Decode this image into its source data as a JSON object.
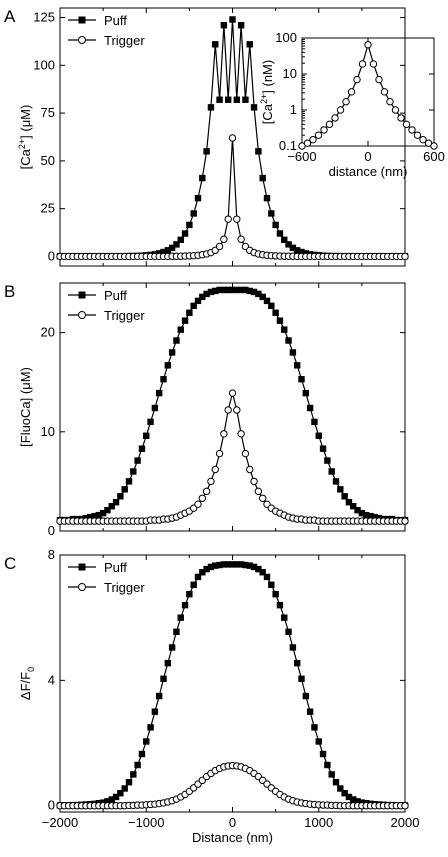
{
  "chart_data": [
    {
      "panel_label": "A",
      "type": "line",
      "x": [
        -2000,
        -1950,
        -1900,
        -1850,
        -1800,
        -1750,
        -1700,
        -1650,
        -1600,
        -1550,
        -1500,
        -1450,
        -1400,
        -1350,
        -1300,
        -1250,
        -1200,
        -1150,
        -1100,
        -1050,
        -1000,
        -950,
        -900,
        -850,
        -800,
        -750,
        -700,
        -650,
        -600,
        -550,
        -500,
        -450,
        -400,
        -350,
        -300,
        -250,
        -200,
        -150,
        -100,
        -50,
        0,
        50,
        100,
        150,
        200,
        250,
        300,
        350,
        400,
        450,
        500,
        550,
        600,
        650,
        700,
        750,
        800,
        850,
        900,
        950,
        1000,
        1050,
        1100,
        1150,
        1200,
        1250,
        1300,
        1350,
        1400,
        1450,
        1500,
        1550,
        1600,
        1650,
        1700,
        1750,
        1800,
        1850,
        1900,
        1950,
        2000
      ],
      "series": [
        {
          "name": "Puff",
          "marker": "filled-square",
          "values": [
            0.1,
            0.1,
            0.1,
            0.1,
            0.1,
            0.1,
            0.1,
            0.1,
            0.1,
            0.1,
            0.1,
            0.1,
            0.1,
            0.1,
            0.1,
            0.1,
            0.2,
            0.2,
            0.3,
            0.4,
            0.6,
            0.8,
            1.1,
            1.6,
            2.3,
            3.2,
            4.5,
            6.3,
            8.7,
            12.0,
            16.5,
            22.5,
            30.5,
            41.0,
            55.0,
            78.0,
            111.0,
            82.0,
            121.0,
            82.0,
            124.0,
            82.0,
            121.0,
            82.0,
            111.0,
            78.0,
            55.0,
            41.0,
            30.5,
            22.5,
            16.5,
            12.0,
            8.7,
            6.3,
            4.5,
            3.2,
            2.3,
            1.6,
            1.1,
            0.8,
            0.6,
            0.4,
            0.3,
            0.2,
            0.2,
            0.1,
            0.1,
            0.1,
            0.1,
            0.1,
            0.1,
            0.1,
            0.1,
            0.1,
            0.1,
            0.1,
            0.1,
            0.1,
            0.1,
            0.1,
            0.1
          ]
        },
        {
          "name": "Trigger",
          "marker": "open-circle",
          "values": [
            0,
            0,
            0,
            0,
            0,
            0,
            0,
            0,
            0,
            0,
            0,
            0,
            0,
            0,
            0,
            0,
            0,
            0,
            0,
            0,
            0,
            0,
            0,
            0,
            0,
            0,
            0.1,
            0.1,
            0.1,
            0.2,
            0.3,
            0.4,
            0.6,
            0.9,
            1.3,
            2.0,
            3.2,
            5.2,
            9.0,
            19.5,
            62.0,
            19.5,
            9.0,
            5.2,
            3.2,
            2.0,
            1.3,
            0.9,
            0.6,
            0.4,
            0.3,
            0.2,
            0.1,
            0.1,
            0.1,
            0,
            0,
            0,
            0,
            0,
            0,
            0,
            0,
            0,
            0,
            0,
            0,
            0,
            0,
            0,
            0,
            0,
            0,
            0,
            0,
            0,
            0,
            0,
            0,
            0,
            0
          ]
        }
      ],
      "xlim": [
        -2000,
        2000
      ],
      "ylim": [
        -5,
        130
      ],
      "yticks": [
        0,
        25,
        50,
        75,
        100,
        125
      ],
      "xticks": [
        -2000,
        -1000,
        0,
        1000,
        2000
      ],
      "show_x_tick_labels": false,
      "ylabel": {
        "prefix": "[Ca",
        "sup": "2+",
        "suffix": "] (μM)"
      },
      "legend_position": "top-left",
      "grid": false
    },
    {
      "panel_label": "",
      "type": "line",
      "inset": true,
      "x": [
        -600,
        -550,
        -500,
        -450,
        -400,
        -350,
        -300,
        -250,
        -200,
        -150,
        -100,
        -50,
        0,
        50,
        100,
        150,
        200,
        250,
        300,
        350,
        400,
        450,
        500,
        550,
        600
      ],
      "series": [
        {
          "name": "",
          "marker": "open-circle",
          "values": [
            0.1,
            0.12,
            0.15,
            0.2,
            0.28,
            0.4,
            0.6,
            1.0,
            1.7,
            3.2,
            7.0,
            19.0,
            65.0,
            19.0,
            7.0,
            3.2,
            1.7,
            1.0,
            0.6,
            0.4,
            0.28,
            0.2,
            0.15,
            0.12,
            0.1
          ]
        }
      ],
      "xlim": [
        -600,
        600
      ],
      "ylim": [
        0.1,
        100
      ],
      "y_scale": "log",
      "yticks": [
        0.1,
        1,
        10,
        100
      ],
      "ytick_labels": [
        "0.1",
        "1",
        "10",
        "100"
      ],
      "xticks": [
        -600,
        0,
        600
      ],
      "xlabel": "distance (nm)",
      "ylabel": {
        "prefix": "[Ca",
        "sup": "2+",
        "suffix": "] (nM)"
      },
      "grid": false
    },
    {
      "panel_label": "B",
      "type": "line",
      "x": [
        -2000,
        -1950,
        -1900,
        -1850,
        -1800,
        -1750,
        -1700,
        -1650,
        -1600,
        -1550,
        -1500,
        -1450,
        -1400,
        -1350,
        -1300,
        -1250,
        -1200,
        -1150,
        -1100,
        -1050,
        -1000,
        -950,
        -900,
        -850,
        -800,
        -750,
        -700,
        -650,
        -600,
        -550,
        -500,
        -450,
        -400,
        -350,
        -300,
        -250,
        -200,
        -150,
        -100,
        -50,
        0,
        50,
        100,
        150,
        200,
        250,
        300,
        350,
        400,
        450,
        500,
        550,
        600,
        650,
        700,
        750,
        800,
        850,
        900,
        950,
        1000,
        1050,
        1100,
        1150,
        1200,
        1250,
        1300,
        1350,
        1400,
        1450,
        1500,
        1550,
        1600,
        1650,
        1700,
        1750,
        1800,
        1850,
        1900,
        1950,
        2000
      ],
      "series": [
        {
          "name": "Puff",
          "marker": "filled-square",
          "values": [
            1.1,
            1.1,
            1.1,
            1.2,
            1.2,
            1.2,
            1.3,
            1.4,
            1.5,
            1.6,
            1.8,
            2.1,
            2.5,
            2.9,
            3.5,
            4.2,
            5.0,
            6.0,
            7.1,
            8.3,
            9.6,
            11.0,
            12.4,
            13.9,
            15.3,
            16.7,
            18.0,
            19.2,
            20.3,
            21.2,
            22.0,
            22.7,
            23.2,
            23.6,
            23.9,
            24.1,
            24.2,
            24.3,
            24.3,
            24.3,
            24.3,
            24.3,
            24.3,
            24.3,
            24.2,
            24.1,
            23.9,
            23.6,
            23.2,
            22.7,
            22.0,
            21.2,
            20.3,
            19.2,
            18.0,
            16.7,
            15.3,
            13.9,
            12.4,
            11.0,
            9.6,
            8.3,
            7.1,
            6.0,
            5.0,
            4.2,
            3.5,
            2.9,
            2.5,
            2.1,
            1.8,
            1.6,
            1.5,
            1.4,
            1.3,
            1.2,
            1.2,
            1.2,
            1.1,
            1.1,
            1.1
          ]
        },
        {
          "name": "Trigger",
          "marker": "open-circle",
          "values": [
            1.0,
            1.0,
            1.0,
            1.0,
            1.0,
            1.0,
            1.0,
            1.0,
            1.0,
            1.0,
            1.0,
            1.0,
            1.0,
            1.0,
            1.0,
            1.0,
            1.0,
            1.0,
            1.0,
            1.0,
            1.0,
            1.1,
            1.1,
            1.1,
            1.2,
            1.2,
            1.3,
            1.4,
            1.6,
            1.8,
            2.0,
            2.3,
            2.7,
            3.3,
            4.0,
            5.0,
            6.2,
            7.8,
            9.8,
            12.2,
            13.9,
            12.2,
            9.8,
            7.8,
            6.2,
            5.0,
            4.0,
            3.3,
            2.7,
            2.3,
            2.0,
            1.8,
            1.6,
            1.4,
            1.3,
            1.2,
            1.2,
            1.1,
            1.1,
            1.1,
            1.0,
            1.0,
            1.0,
            1.0,
            1.0,
            1.0,
            1.0,
            1.0,
            1.0,
            1.0,
            1.0,
            1.0,
            1.0,
            1.0,
            1.0,
            1.0,
            1.0,
            1.0,
            1.0,
            1.0,
            1.0
          ]
        }
      ],
      "xlim": [
        -2000,
        2000
      ],
      "ylim": [
        0,
        25
      ],
      "yticks": [
        0,
        10,
        20
      ],
      "xticks": [
        -2000,
        -1000,
        0,
        1000,
        2000
      ],
      "show_x_tick_labels": false,
      "ylabel": {
        "prefix": "[FluoCa] (μM)",
        "sup": "",
        "suffix": ""
      },
      "legend_position": "top-left",
      "grid": false
    },
    {
      "panel_label": "C",
      "type": "line",
      "x": [
        -2000,
        -1950,
        -1900,
        -1850,
        -1800,
        -1750,
        -1700,
        -1650,
        -1600,
        -1550,
        -1500,
        -1450,
        -1400,
        -1350,
        -1300,
        -1250,
        -1200,
        -1150,
        -1100,
        -1050,
        -1000,
        -950,
        -900,
        -850,
        -800,
        -750,
        -700,
        -650,
        -600,
        -550,
        -500,
        -450,
        -400,
        -350,
        -300,
        -250,
        -200,
        -150,
        -100,
        -50,
        0,
        50,
        100,
        150,
        200,
        250,
        300,
        350,
        400,
        450,
        500,
        550,
        600,
        650,
        700,
        750,
        800,
        850,
        900,
        950,
        1000,
        1050,
        1100,
        1150,
        1200,
        1250,
        1300,
        1350,
        1400,
        1450,
        1500,
        1550,
        1600,
        1650,
        1700,
        1750,
        1800,
        1850,
        1900,
        1950,
        2000
      ],
      "series": [
        {
          "name": "Puff",
          "marker": "filled-square",
          "values": [
            0.01,
            0.01,
            0.01,
            0.02,
            0.02,
            0.03,
            0.04,
            0.05,
            0.06,
            0.08,
            0.1,
            0.14,
            0.2,
            0.28,
            0.4,
            0.55,
            0.75,
            1.0,
            1.3,
            1.65,
            2.05,
            2.5,
            3.0,
            3.5,
            4.05,
            4.55,
            5.05,
            5.55,
            6.0,
            6.4,
            6.75,
            7.05,
            7.3,
            7.45,
            7.55,
            7.62,
            7.66,
            7.68,
            7.7,
            7.7,
            7.7,
            7.7,
            7.7,
            7.68,
            7.66,
            7.62,
            7.55,
            7.45,
            7.3,
            7.05,
            6.75,
            6.4,
            6.0,
            5.55,
            5.05,
            4.55,
            4.05,
            3.5,
            3.0,
            2.5,
            2.05,
            1.65,
            1.3,
            1.0,
            0.75,
            0.55,
            0.4,
            0.28,
            0.2,
            0.14,
            0.1,
            0.08,
            0.06,
            0.05,
            0.04,
            0.03,
            0.02,
            0.02,
            0.01,
            0.01,
            0.01
          ]
        },
        {
          "name": "Trigger",
          "marker": "open-circle",
          "values": [
            0,
            0,
            0,
            0,
            0,
            0,
            0,
            0,
            0,
            0,
            0,
            0,
            0,
            0,
            0,
            0,
            0.01,
            0.01,
            0.02,
            0.02,
            0.03,
            0.04,
            0.05,
            0.07,
            0.09,
            0.12,
            0.16,
            0.21,
            0.28,
            0.36,
            0.46,
            0.57,
            0.69,
            0.81,
            0.93,
            1.03,
            1.12,
            1.19,
            1.24,
            1.27,
            1.28,
            1.27,
            1.24,
            1.19,
            1.12,
            1.03,
            0.93,
            0.81,
            0.69,
            0.57,
            0.46,
            0.36,
            0.28,
            0.21,
            0.16,
            0.12,
            0.09,
            0.07,
            0.05,
            0.04,
            0.03,
            0.02,
            0.02,
            0.01,
            0.01,
            0,
            0,
            0,
            0,
            0,
            0,
            0,
            0,
            0,
            0,
            0,
            0,
            0,
            0,
            0,
            0
          ]
        }
      ],
      "xlim": [
        -2000,
        2000
      ],
      "ylim": [
        -0.2,
        8
      ],
      "yticks": [
        0,
        4,
        8
      ],
      "xticks": [
        -2000,
        -1000,
        0,
        1000,
        2000
      ],
      "show_x_tick_labels": true,
      "xlabel": "Distance  (nm)",
      "ylabel": {
        "prefix": "ΔF/F",
        "sub": "0",
        "suffix": ""
      },
      "legend_position": "top-left",
      "grid": false
    }
  ]
}
